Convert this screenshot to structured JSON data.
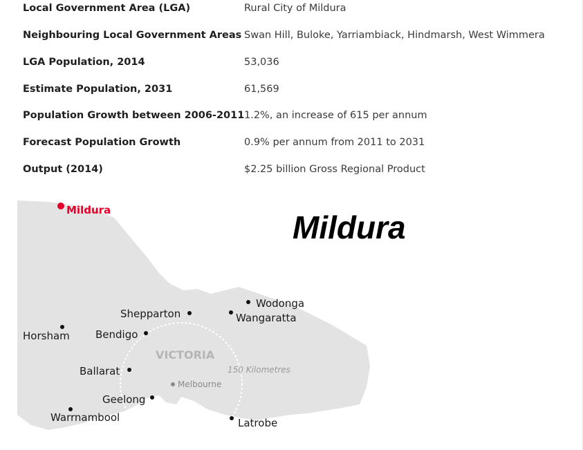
{
  "table": {
    "rows": [
      {
        "label": "Local Government Area (LGA)",
        "value": "Rural City of Mildura"
      },
      {
        "label": "Neighbouring Local Government Areas",
        "value": "Swan Hill, Buloke, Yarriambiack, Hindmarsh, West Wimmera"
      },
      {
        "label": "LGA Population, 2014",
        "value": "53,036"
      },
      {
        "label": "Estimate Population, 2031",
        "value": "61,569"
      },
      {
        "label": "Population Growth between 2006-2011",
        "value": "1.2%, an increase of 615 per annum"
      },
      {
        "label": "Forecast Population Growth",
        "value": "0.9% per annum from 2011 to 2031"
      },
      {
        "label": "Output (2014)",
        "value": "$2.25 billion Gross Regional Product"
      }
    ]
  },
  "map": {
    "heading": "Mildura",
    "highlight_place": "Mildura",
    "region": "VICTORIA",
    "radius_label": "150 Kilometres",
    "places": {
      "wodonga": "Wodonga",
      "wangaratta": "Wangaratta",
      "shepparton": "Shepparton",
      "horsham": "Horsham",
      "bendigo": "Bendigo",
      "ballarat": "Ballarat",
      "melbourne": "Melbourne",
      "geelong": "Geelong",
      "warrnambool": "Warrnambool",
      "latrobe": "Latrobe"
    },
    "colors": {
      "land": "#e3e3e3",
      "highlight": "#e4002b",
      "dot": "#111111"
    }
  }
}
